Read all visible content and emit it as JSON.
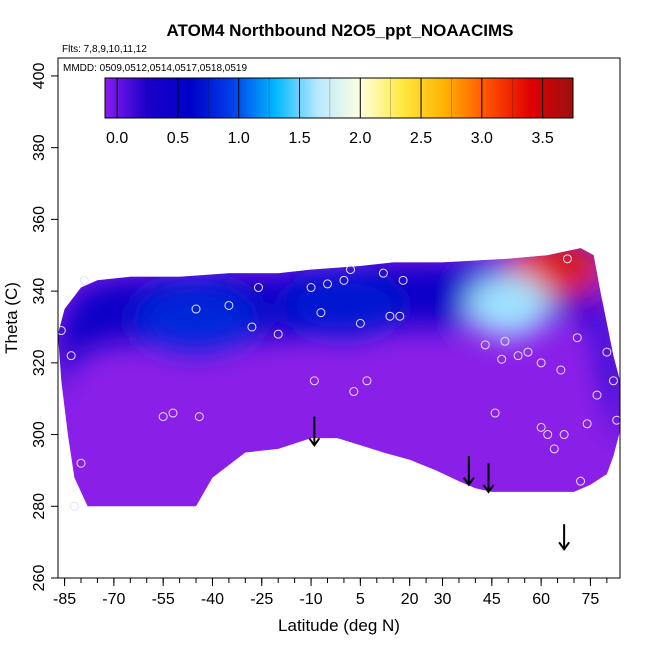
{
  "chart_data": {
    "type": "heatmap",
    "title": "ATOM4 Northbound N2O5_ppt_NOAACIMS",
    "flights_note": "Flts: 7,8,9,10,11,12",
    "dates_note": "MMDD: 0509,0512,0514,0517,0518,0519",
    "xlabel": "Latitude (deg N)",
    "ylabel": "Theta (C)",
    "xlim": [
      -87,
      84
    ],
    "ylim": [
      260,
      405
    ],
    "x_ticks": [
      -85,
      -70,
      -55,
      -40,
      -25,
      -10,
      5,
      20,
      30,
      45,
      60,
      75
    ],
    "y_ticks": [
      260,
      280,
      300,
      320,
      340,
      360,
      380,
      400
    ],
    "colorbar": {
      "min": -0.1,
      "max": 3.75,
      "ticks": [
        0.0,
        0.5,
        1.0,
        1.5,
        2.0,
        2.5,
        3.0,
        3.5
      ],
      "tick_labels": [
        "0.0",
        "0.5",
        "1.0",
        "1.5",
        "2.0",
        "2.5",
        "3.0",
        "3.5"
      ],
      "colors": [
        "#8a1cf0",
        "#1a00c8",
        "#0000c8",
        "#0040e8",
        "#00b8ff",
        "#b8e8ff",
        "#ffffe0",
        "#ffe840",
        "#ffb000",
        "#ff5000",
        "#e00000",
        "#9c1010"
      ]
    },
    "field_color_base": "#8a1fe8",
    "field_outline_upper": [
      [
        -87,
        328
      ],
      [
        -85,
        335
      ],
      [
        -80,
        341
      ],
      [
        -75,
        343
      ],
      [
        -65,
        344
      ],
      [
        -50,
        344
      ],
      [
        -35,
        345
      ],
      [
        -20,
        345
      ],
      [
        -10,
        346
      ],
      [
        5,
        347
      ],
      [
        15,
        348
      ],
      [
        30,
        348
      ],
      [
        50,
        349
      ],
      [
        62,
        350
      ],
      [
        72,
        352
      ],
      [
        76,
        350
      ],
      [
        78,
        340
      ],
      [
        80,
        331
      ],
      [
        82,
        322
      ],
      [
        84,
        315
      ]
    ],
    "field_outline_lower": [
      [
        84,
        301
      ],
      [
        82,
        294
      ],
      [
        80,
        289
      ],
      [
        75,
        286
      ],
      [
        70,
        284
      ],
      [
        62,
        284
      ],
      [
        55,
        284
      ],
      [
        45,
        284
      ],
      [
        40,
        285
      ],
      [
        35,
        287
      ],
      [
        28,
        290
      ],
      [
        20,
        293
      ],
      [
        12,
        295
      ],
      [
        5,
        297
      ],
      [
        -2,
        299
      ],
      [
        -10,
        299
      ],
      [
        -20,
        296
      ],
      [
        -30,
        295
      ],
      [
        -40,
        288
      ],
      [
        -45,
        280
      ],
      [
        -78,
        280
      ],
      [
        -82,
        288
      ],
      [
        -84,
        300
      ],
      [
        -86,
        315
      ]
    ],
    "enhanced_regions": [
      {
        "name": "north-high",
        "center": [
          64,
          346
        ],
        "value": 3.2
      },
      {
        "name": "north-mid",
        "center": [
          50,
          336
        ],
        "value": 1.6
      },
      {
        "name": "upper-blue",
        "center": [
          0,
          336
        ],
        "value": 0.7
      },
      {
        "name": "west-blue",
        "center": [
          -45,
          332
        ],
        "value": 0.8
      }
    ],
    "sample_points": [
      {
        "x": -86,
        "y": 329
      },
      {
        "x": -83,
        "y": 322
      },
      {
        "x": -79,
        "y": 343
      },
      {
        "x": -80,
        "y": 292
      },
      {
        "x": -82,
        "y": 280
      },
      {
        "x": -55,
        "y": 305
      },
      {
        "x": -52,
        "y": 306
      },
      {
        "x": -45,
        "y": 335
      },
      {
        "x": -44,
        "y": 305
      },
      {
        "x": -35,
        "y": 336
      },
      {
        "x": -28,
        "y": 330
      },
      {
        "x": -26,
        "y": 341
      },
      {
        "x": -20,
        "y": 328
      },
      {
        "x": -10,
        "y": 341
      },
      {
        "x": -9,
        "y": 315
      },
      {
        "x": -7,
        "y": 334
      },
      {
        "x": -5,
        "y": 342
      },
      {
        "x": 0,
        "y": 343
      },
      {
        "x": 2,
        "y": 346
      },
      {
        "x": 3,
        "y": 312
      },
      {
        "x": 5,
        "y": 331
      },
      {
        "x": 7,
        "y": 315
      },
      {
        "x": 12,
        "y": 345
      },
      {
        "x": 14,
        "y": 333
      },
      {
        "x": 17,
        "y": 333
      },
      {
        "x": 18,
        "y": 343
      },
      {
        "x": 43,
        "y": 325
      },
      {
        "x": 46,
        "y": 306
      },
      {
        "x": 48,
        "y": 321
      },
      {
        "x": 49,
        "y": 326
      },
      {
        "x": 53,
        "y": 322
      },
      {
        "x": 56,
        "y": 323
      },
      {
        "x": 60,
        "y": 320
      },
      {
        "x": 60,
        "y": 302
      },
      {
        "x": 62,
        "y": 300
      },
      {
        "x": 64,
        "y": 296
      },
      {
        "x": 66,
        "y": 318
      },
      {
        "x": 67,
        "y": 300
      },
      {
        "x": 68,
        "y": 349
      },
      {
        "x": 71,
        "y": 327
      },
      {
        "x": 72,
        "y": 287
      },
      {
        "x": 74,
        "y": 303
      },
      {
        "x": 77,
        "y": 311
      },
      {
        "x": 80,
        "y": 323
      },
      {
        "x": 82,
        "y": 315
      },
      {
        "x": 83,
        "y": 304
      }
    ],
    "arrows": [
      {
        "x": -9,
        "y_top": 305,
        "y_bottom": 297
      },
      {
        "x": 38,
        "y_top": 294,
        "y_bottom": 286
      },
      {
        "x": 44,
        "y_top": 292,
        "y_bottom": 284
      },
      {
        "x": 67,
        "y_top": 275,
        "y_bottom": 268
      }
    ]
  }
}
